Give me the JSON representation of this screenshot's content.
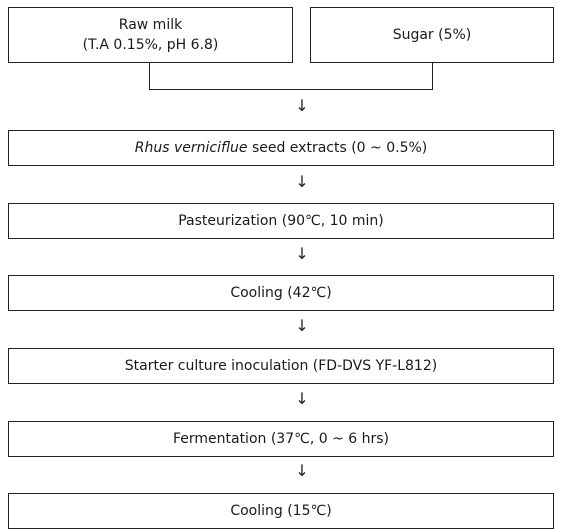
{
  "diagram": {
    "raw_milk": {
      "line1": "Raw milk",
      "line2": "(T.A 0.15%, pH 6.8)"
    },
    "sugar": "Sugar (5%)",
    "steps": [
      {
        "italic": "Rhus verniciflue",
        "rest": " seed extracts (0 ~ 0.5%)"
      },
      {
        "text": "Pasteurization (90℃, 10 min)"
      },
      {
        "text": "Cooling (42℃)"
      },
      {
        "text": "Starter culture inoculation (FD-DVS YF-L812)"
      },
      {
        "text": "Fermentation (37℃, 0 ~ 6 hrs)"
      },
      {
        "text": "Cooling (15℃)"
      }
    ],
    "arrow_glyph": "↓"
  }
}
